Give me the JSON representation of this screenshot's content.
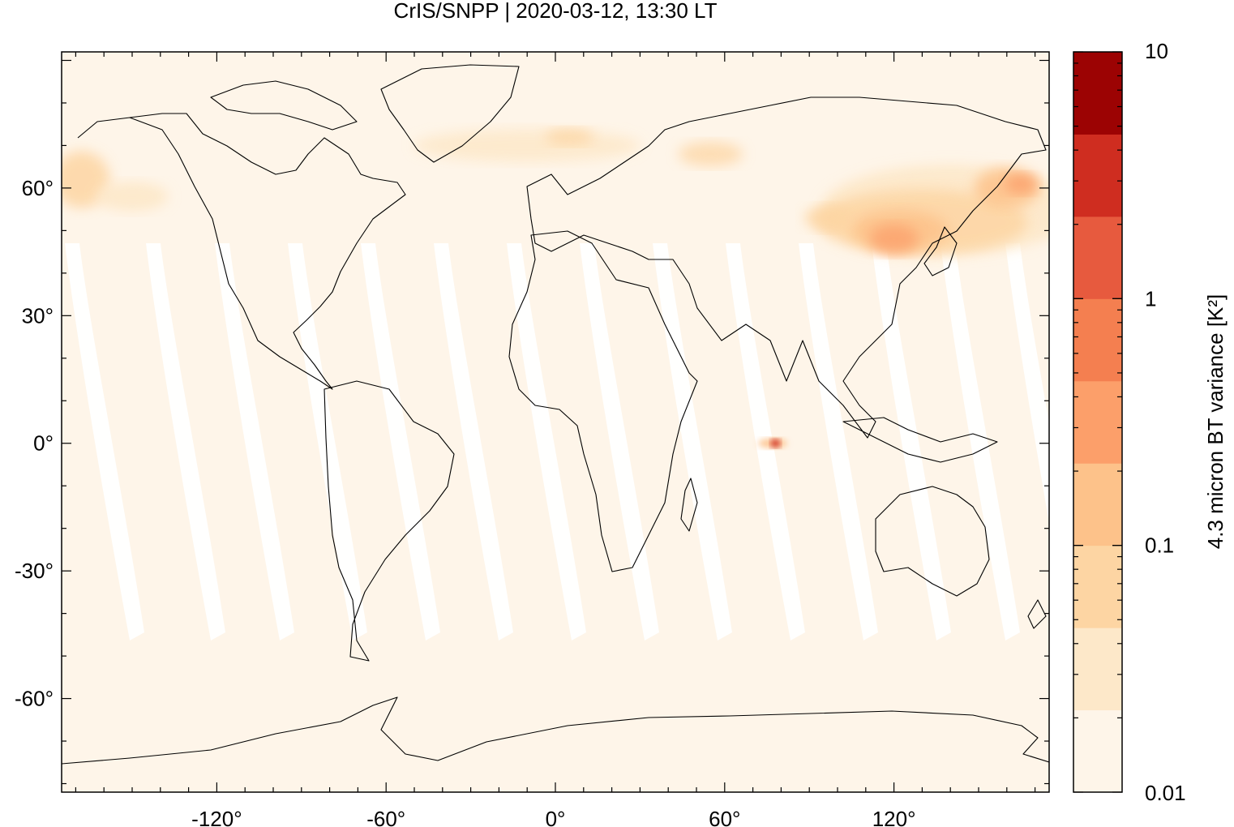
{
  "chart_data": {
    "type": "heatmap",
    "title": "CrIS/SNPP | 2020-03-12, 13:30 LT",
    "projection": "equirectangular",
    "xlim": [
      -175,
      175
    ],
    "ylim": [
      -82,
      92
    ],
    "x_ticks": [
      {
        "value": -120,
        "label": "-120°"
      },
      {
        "value": -60,
        "label": "-60°"
      },
      {
        "value": 0,
        "label": "0°"
      },
      {
        "value": 60,
        "label": "60°"
      },
      {
        "value": 120,
        "label": "120°"
      }
    ],
    "y_ticks": [
      {
        "value": 60,
        "label": "60°"
      },
      {
        "value": 30,
        "label": "30°"
      },
      {
        "value": 0,
        "label": "0°"
      },
      {
        "value": -30,
        "label": "-30°"
      },
      {
        "value": -60,
        "label": "-60°"
      }
    ],
    "colorbar": {
      "label": "4.3 micron BT variance [K²]",
      "scale": "log",
      "range": [
        0.01,
        10
      ],
      "tick_labels": [
        {
          "value": 10,
          "label": "10"
        },
        {
          "value": 1,
          "label": "1"
        },
        {
          "value": 0.1,
          "label": "0.1"
        },
        {
          "value": 0.01,
          "label": "0.01"
        }
      ],
      "colors": [
        "#fef5e9",
        "#fde8c9",
        "#fdd5a3",
        "#fdc28a",
        "#fc9f6a",
        "#f47f50",
        "#e75a3e",
        "#cf2d20",
        "#9c0303"
      ]
    },
    "background_value_color": "#fef5e9",
    "features": [
      {
        "name": "east-asia-high-variance",
        "lon": [
          95,
          172
        ],
        "lat": [
          38,
          65
        ],
        "level": "0.1-0.5"
      },
      {
        "name": "north-atlantic-arctic-patch",
        "lon": [
          -30,
          60
        ],
        "lat": [
          62,
          80
        ],
        "level": "0.05"
      },
      {
        "name": "alaska-patch",
        "lon": [
          -175,
          -140
        ],
        "lat": [
          55,
          70
        ],
        "level": "0.05-0.1"
      },
      {
        "name": "indian-ocean-spot",
        "lon": [
          76,
          78
        ],
        "lat": [
          -1,
          0
        ],
        "level": "2-5"
      }
    ]
  }
}
